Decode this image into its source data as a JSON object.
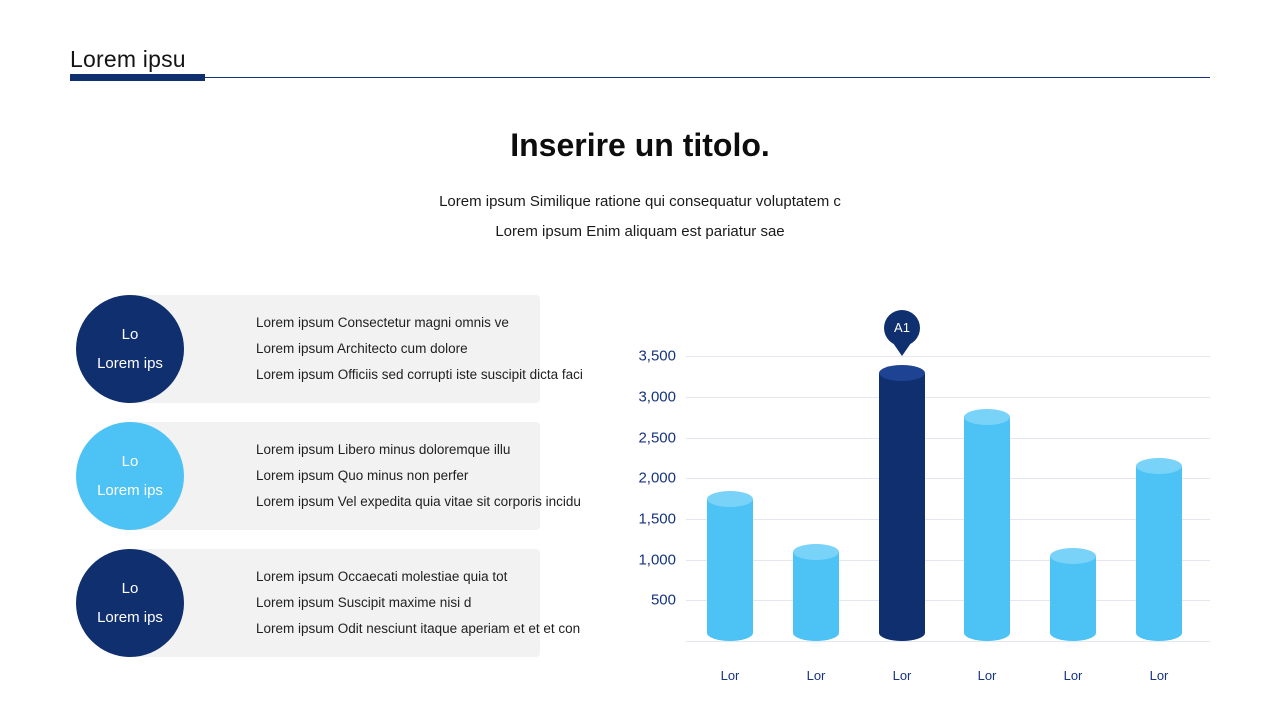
{
  "header": {
    "title": "Lorem ipsu"
  },
  "title": "Inserire un titolo.",
  "subtitle1": "Lorem ipsum Similique ratione qui consequatur voluptatem c",
  "subtitle2": "Lorem ipsum Enim aliquam est pariatur sae",
  "colors": {
    "navy": "#102f6e",
    "blue": "#4cc2f5",
    "navy-cap": "#1d4392",
    "blue-cap": "#79d3f8",
    "box": "#f2f2f2",
    "axis": "#16337d",
    "grid": "#e4e7ee",
    "text": "#1a1a1a"
  },
  "list": {
    "items": [
      {
        "badge_line1": "Lo",
        "badge_line2": "Lorem ips",
        "circle_color": "#102f6e",
        "lines": [
          "Lorem ipsum Consectetur magni omnis ve",
          "Lorem ipsum Architecto cum dolore",
          "Lorem ipsum Officiis sed corrupti iste suscipit dicta faci"
        ]
      },
      {
        "badge_line1": "Lo",
        "badge_line2": "Lorem ips",
        "circle_color": "#4cc2f5",
        "lines": [
          "Lorem ipsum Libero minus doloremque illu",
          "Lorem ipsum Quo minus non perfer",
          "Lorem ipsum Vel expedita quia vitae sit corporis incidu"
        ]
      },
      {
        "badge_line1": "Lo",
        "badge_line2": "Lorem ips",
        "circle_color": "#102f6e",
        "lines": [
          "Lorem ipsum Occaecati molestiae quia tot",
          "Lorem ipsum Suscipit maxime nisi d",
          "Lorem ipsum Odit nesciunt itaque aperiam et et et con"
        ]
      }
    ]
  },
  "chart_data": {
    "type": "bar",
    "title": "",
    "xlabel": "",
    "ylabel": "",
    "categories": [
      "Lor",
      "Lor",
      "Lor",
      "Lor",
      "Lor",
      "Lor"
    ],
    "values": [
      1750,
      1100,
      3300,
      2750,
      1050,
      2150
    ],
    "bar_colors": [
      "#4cc2f5",
      "#4cc2f5",
      "#102f6e",
      "#4cc2f5",
      "#4cc2f5",
      "#4cc2f5"
    ],
    "bar_cap_colors": [
      "#79d3f8",
      "#79d3f8",
      "#1d4392",
      "#79d3f8",
      "#79d3f8",
      "#79d3f8"
    ],
    "ylim": [
      0,
      3500
    ],
    "ytick_values": [
      500,
      1000,
      1500,
      2000,
      2500,
      3000,
      3500
    ],
    "ytick_labels": [
      "500",
      "1,000",
      "1,500",
      "2,000",
      "2,500",
      "3,000",
      "3,500"
    ],
    "grid": true,
    "legend": false,
    "highlight": {
      "index": 2,
      "label": "A1"
    }
  }
}
